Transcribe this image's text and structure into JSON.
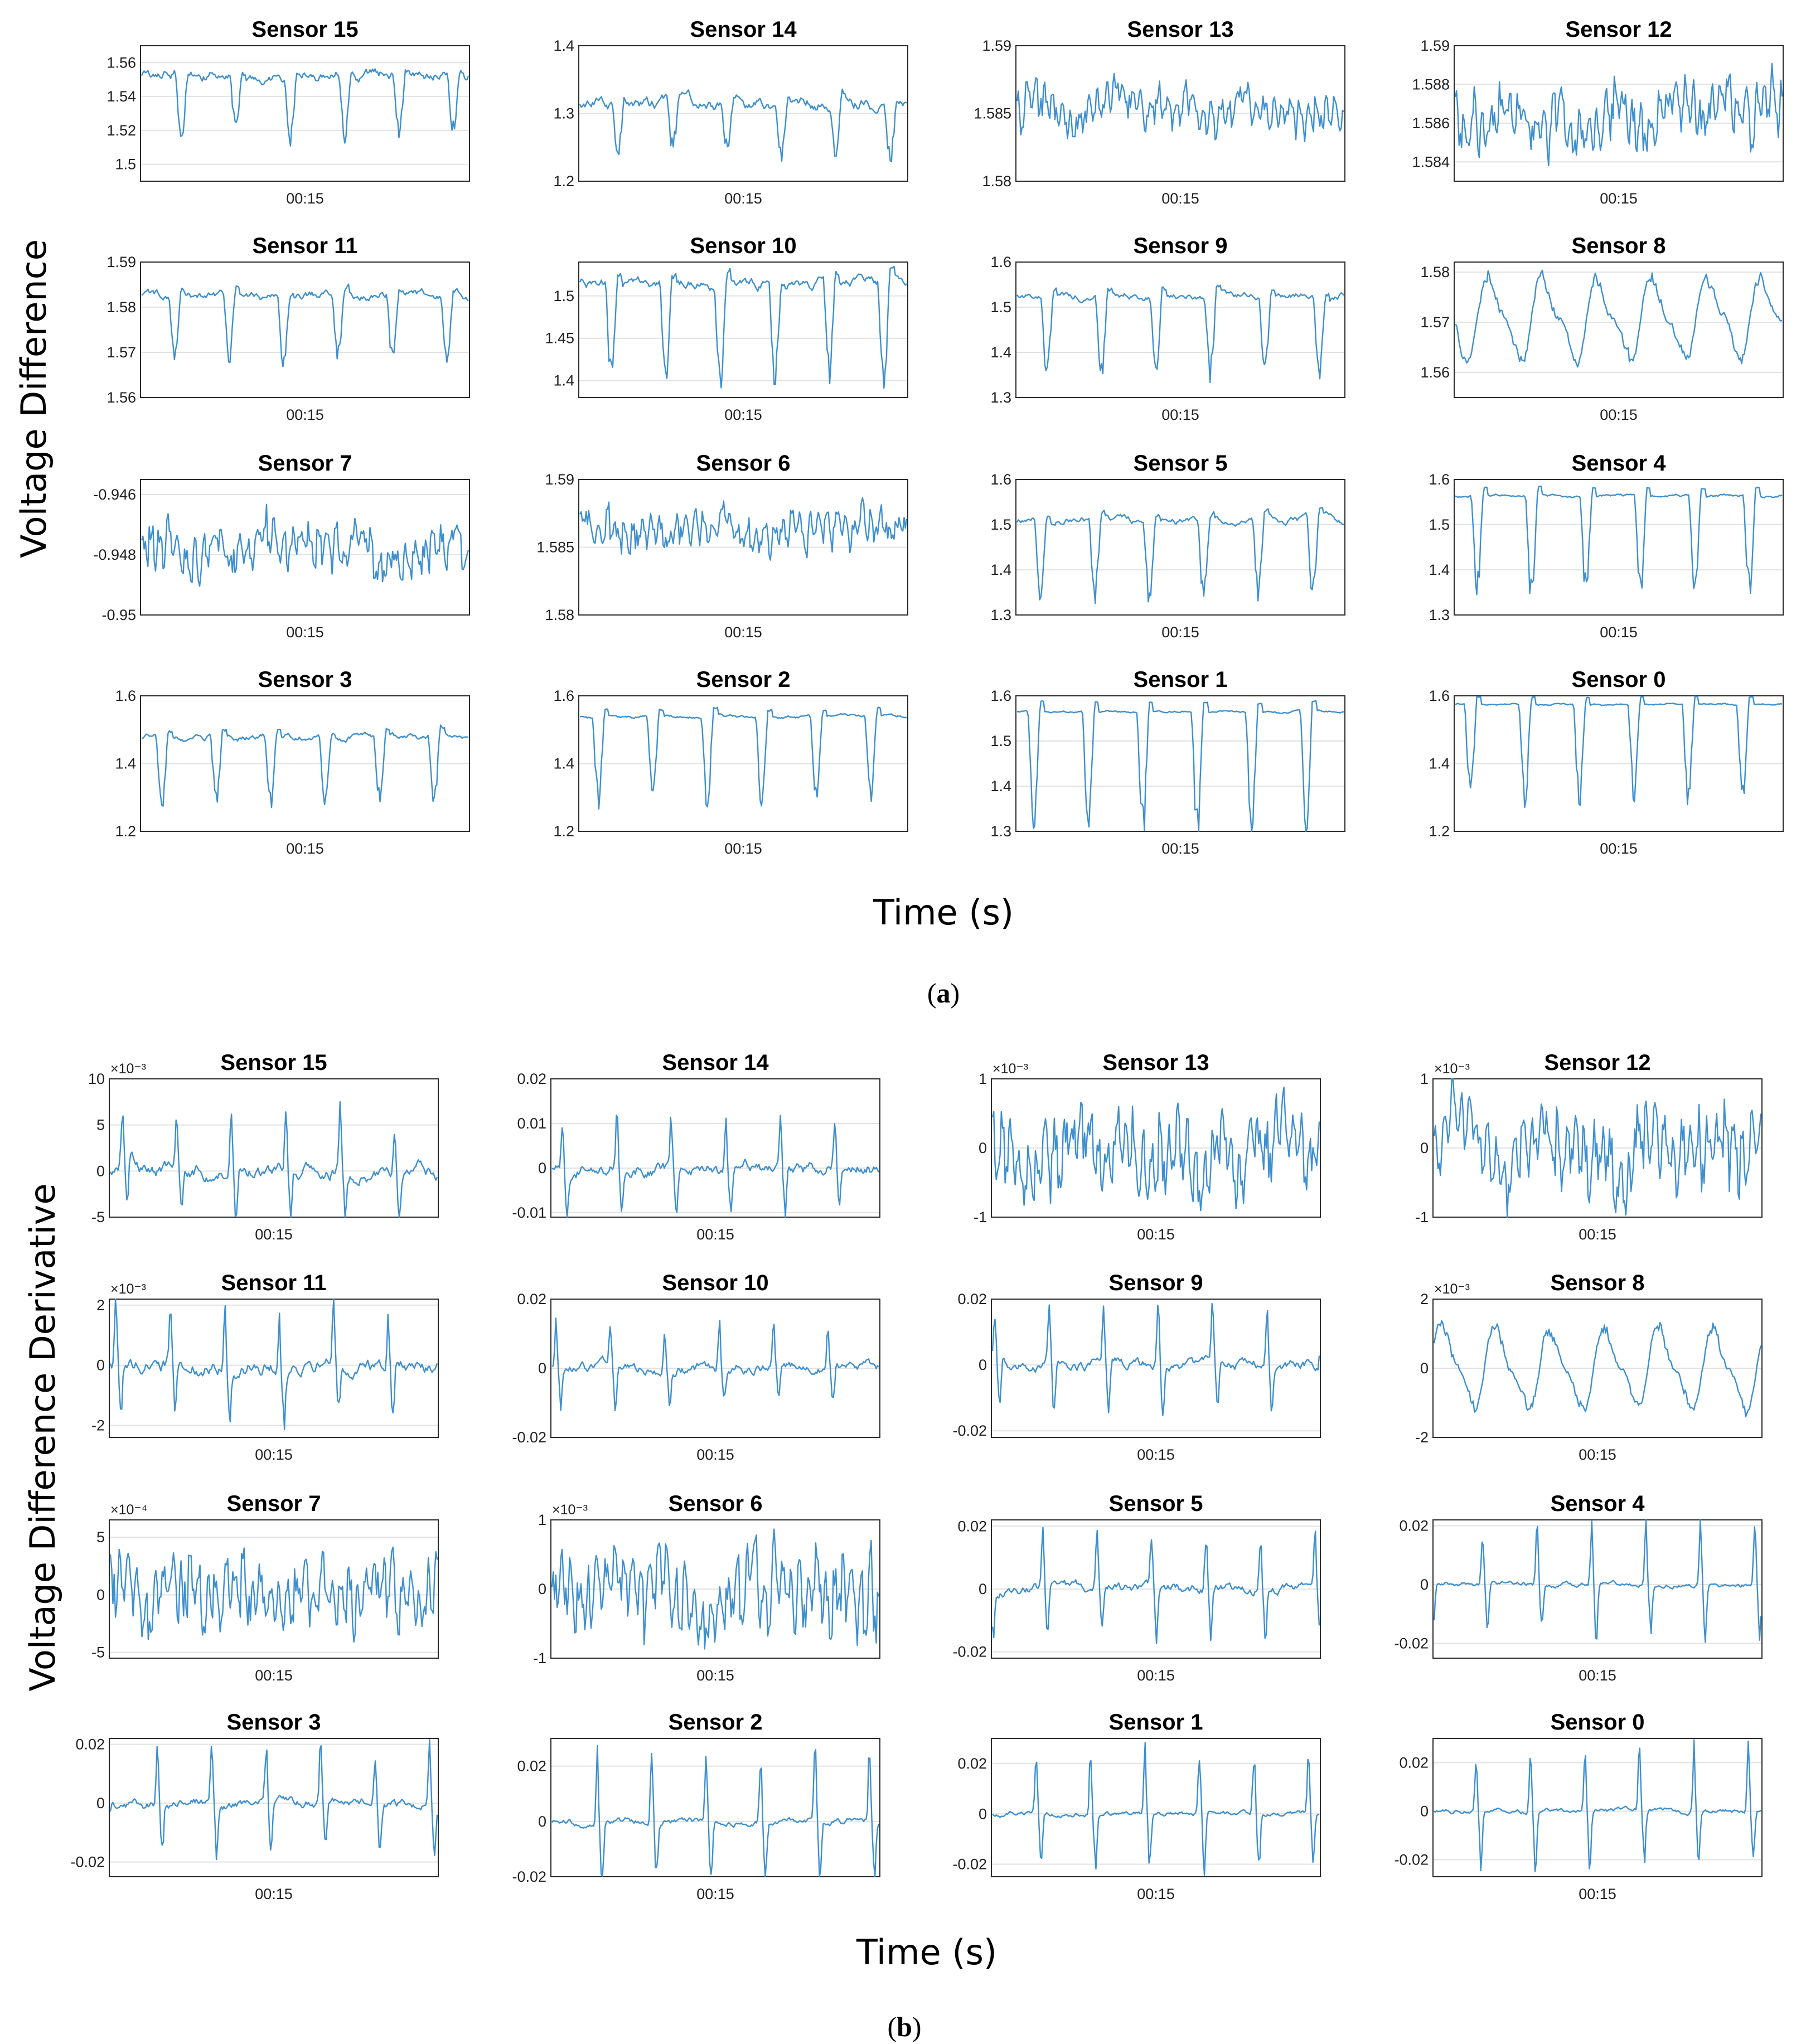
{
  "panels": [
    {
      "id": "a",
      "caption_label": "a",
      "ylabel": "Voltage Difference",
      "xlabel": "Time (s)"
    },
    {
      "id": "b",
      "caption_label": "b",
      "ylabel": "Voltage Difference Derivative",
      "xlabel": "Time (s)"
    }
  ],
  "chart_data": [
    {
      "panel": "a",
      "type": "line",
      "title": "Sensor 15",
      "xtick": "00:15",
      "ylim": [
        1.49,
        1.57
      ],
      "yticks": [
        1.5,
        1.52,
        1.54,
        1.56
      ],
      "yticklabels": [
        "1.5",
        "1.52",
        "1.54",
        "1.56"
      ],
      "multiplier": "",
      "signal": {
        "kind": "level",
        "base": 1.553,
        "amp": 0.035,
        "noise": 0.004
      }
    },
    {
      "panel": "a",
      "type": "line",
      "title": "Sensor 14",
      "xtick": "00:15",
      "ylim": [
        1.2,
        1.4
      ],
      "yticks": [
        1.2,
        1.3,
        1.4
      ],
      "yticklabels": [
        "1.2",
        "1.3",
        "1.4"
      ],
      "multiplier": "",
      "signal": {
        "kind": "level",
        "base": 1.315,
        "amp": 0.075,
        "noise": 0.012
      }
    },
    {
      "panel": "a",
      "type": "line",
      "title": "Sensor 13",
      "xtick": "00:15",
      "ylim": [
        1.58,
        1.59
      ],
      "yticks": [
        1.58,
        1.585,
        1.59
      ],
      "yticklabels": [
        "1.58",
        "1.585",
        "1.59"
      ],
      "multiplier": "",
      "signal": {
        "kind": "noise",
        "base": 1.5855,
        "amp": 0.0014,
        "noise": 0.0009
      }
    },
    {
      "panel": "a",
      "type": "line",
      "title": "Sensor 12",
      "xtick": "00:15",
      "ylim": [
        1.583,
        1.59
      ],
      "yticks": [
        1.584,
        1.586,
        1.588,
        1.59
      ],
      "yticklabels": [
        "1.584",
        "1.586",
        "1.588",
        "1.59"
      ],
      "multiplier": "",
      "signal": {
        "kind": "noise",
        "base": 1.5864,
        "amp": 0.0014,
        "noise": 0.0008
      }
    },
    {
      "panel": "a",
      "type": "line",
      "title": "Sensor 11",
      "xtick": "00:15",
      "ylim": [
        1.56,
        1.59
      ],
      "yticks": [
        1.56,
        1.57,
        1.58,
        1.59
      ],
      "yticklabels": [
        "1.56",
        "1.57",
        "1.58",
        "1.59"
      ],
      "multiplier": "",
      "signal": {
        "kind": "level",
        "base": 1.5825,
        "amp": 0.014,
        "noise": 0.0012
      }
    },
    {
      "panel": "a",
      "type": "line",
      "title": "Sensor 10",
      "xtick": "00:15",
      "ylim": [
        1.38,
        1.54
      ],
      "yticks": [
        1.4,
        1.45,
        1.5
      ],
      "yticklabels": [
        "1.4",
        "1.45",
        "1.5"
      ],
      "multiplier": "",
      "signal": {
        "kind": "level",
        "base": 1.515,
        "amp": 0.12,
        "noise": 0.008
      }
    },
    {
      "panel": "a",
      "type": "line",
      "title": "Sensor 9",
      "xtick": "00:15",
      "ylim": [
        1.3,
        1.6
      ],
      "yticks": [
        1.3,
        1.4,
        1.5,
        1.6
      ],
      "yticklabels": [
        "1.3",
        "1.4",
        "1.5",
        "1.6"
      ],
      "multiplier": "",
      "signal": {
        "kind": "level",
        "base": 1.525,
        "amp": 0.18,
        "noise": 0.01
      }
    },
    {
      "panel": "a",
      "type": "line",
      "title": "Sensor 8",
      "xtick": "00:15",
      "ylim": [
        1.555,
        1.582
      ],
      "yticks": [
        1.56,
        1.57,
        1.58
      ],
      "yticklabels": [
        "1.56",
        "1.57",
        "1.58"
      ],
      "multiplier": "",
      "signal": {
        "kind": "wave",
        "base": 1.571,
        "amp": 0.007,
        "noise": 0.0012
      }
    },
    {
      "panel": "a",
      "type": "line",
      "title": "Sensor 7",
      "xtick": "00:15",
      "ylim": [
        -0.95,
        -0.9455
      ],
      "yticks": [
        -0.95,
        -0.948,
        -0.946
      ],
      "yticklabels": [
        "-0.95",
        "-0.948",
        "-0.946"
      ],
      "multiplier": "",
      "signal": {
        "kind": "noise",
        "base": -0.9478,
        "amp": 0.0007,
        "noise": 0.0005
      }
    },
    {
      "panel": "a",
      "type": "line",
      "title": "Sensor 6",
      "xtick": "00:15",
      "ylim": [
        1.58,
        1.59
      ],
      "yticks": [
        1.58,
        1.585,
        1.59
      ],
      "yticklabels": [
        "1.58",
        "1.585",
        "1.59"
      ],
      "multiplier": "",
      "signal": {
        "kind": "noise",
        "base": 1.5863,
        "amp": 0.0013,
        "noise": 0.0008
      }
    },
    {
      "panel": "a",
      "type": "line",
      "title": "Sensor 5",
      "xtick": "00:15",
      "ylim": [
        1.3,
        1.6
      ],
      "yticks": [
        1.3,
        1.4,
        1.5,
        1.6
      ],
      "yticklabels": [
        "1.3",
        "1.4",
        "1.5",
        "1.6"
      ],
      "multiplier": "",
      "signal": {
        "kind": "level",
        "base": 1.51,
        "amp": 0.17,
        "noise": 0.01
      }
    },
    {
      "panel": "a",
      "type": "line",
      "title": "Sensor 4",
      "xtick": "00:15",
      "ylim": [
        1.3,
        1.6
      ],
      "yticks": [
        1.3,
        1.4,
        1.5,
        1.6
      ],
      "yticklabels": [
        "1.3",
        "1.4",
        "1.5",
        "1.6"
      ],
      "multiplier": "",
      "signal": {
        "kind": "level",
        "base": 1.565,
        "amp": 0.22,
        "noise": 0.004
      }
    },
    {
      "panel": "a",
      "type": "line",
      "title": "Sensor 3",
      "xtick": "00:15",
      "ylim": [
        1.2,
        1.6
      ],
      "yticks": [
        1.2,
        1.4,
        1.6
      ],
      "yticklabels": [
        "1.2",
        "1.4",
        "1.6"
      ],
      "multiplier": "",
      "signal": {
        "kind": "level",
        "base": 1.48,
        "amp": 0.2,
        "noise": 0.012
      }
    },
    {
      "panel": "a",
      "type": "line",
      "title": "Sensor 2",
      "xtick": "00:15",
      "ylim": [
        1.2,
        1.6
      ],
      "yticks": [
        1.2,
        1.4,
        1.6
      ],
      "yticklabels": [
        "1.2",
        "1.4",
        "1.6"
      ],
      "multiplier": "",
      "signal": {
        "kind": "level",
        "base": 1.54,
        "amp": 0.25,
        "noise": 0.006
      }
    },
    {
      "panel": "a",
      "type": "line",
      "title": "Sensor 1",
      "xtick": "00:15",
      "ylim": [
        1.3,
        1.6
      ],
      "yticks": [
        1.3,
        1.4,
        1.5,
        1.6
      ],
      "yticklabels": [
        "1.3",
        "1.4",
        "1.5",
        "1.6"
      ],
      "multiplier": "",
      "signal": {
        "kind": "level",
        "base": 1.565,
        "amp": 0.26,
        "noise": 0.003
      }
    },
    {
      "panel": "a",
      "type": "line",
      "title": "Sensor 0",
      "xtick": "00:15",
      "ylim": [
        1.2,
        1.6
      ],
      "yticks": [
        1.2,
        1.4,
        1.6
      ],
      "yticklabels": [
        "1.2",
        "1.4",
        "1.6"
      ],
      "multiplier": "",
      "signal": {
        "kind": "level",
        "base": 1.575,
        "amp": 0.28,
        "noise": 0.003
      }
    },
    {
      "panel": "b",
      "type": "line",
      "title": "Sensor 15",
      "xtick": "00:15",
      "ylim": [
        -5,
        10
      ],
      "yticks": [
        -5,
        0,
        5,
        10
      ],
      "yticklabels": [
        "-5",
        "0",
        "5",
        "10"
      ],
      "multiplier": "×10⁻³",
      "signal": {
        "kind": "deriv",
        "base": 0,
        "amp": 6,
        "noise": 1
      }
    },
    {
      "panel": "b",
      "type": "line",
      "title": "Sensor 14",
      "xtick": "00:15",
      "ylim": [
        -0.011,
        0.02
      ],
      "yticks": [
        -0.01,
        0,
        0.01,
        0.02
      ],
      "yticklabels": [
        "-0.01",
        "0",
        "0.01",
        "0.02"
      ],
      "multiplier": "",
      "signal": {
        "kind": "deriv",
        "base": 0,
        "amp": 0.012,
        "noise": 0.002
      }
    },
    {
      "panel": "b",
      "type": "line",
      "title": "Sensor 13",
      "xtick": "00:15",
      "ylim": [
        -1,
        1
      ],
      "yticks": [
        -1,
        0,
        1
      ],
      "yticklabels": [
        "-1",
        "0",
        "1"
      ],
      "multiplier": "×10⁻³",
      "signal": {
        "kind": "noise",
        "base": 0,
        "amp": 0.55,
        "noise": 0.3
      }
    },
    {
      "panel": "b",
      "type": "line",
      "title": "Sensor 12",
      "xtick": "00:15",
      "ylim": [
        -1,
        1
      ],
      "yticks": [
        -1,
        0,
        1
      ],
      "yticklabels": [
        "-1",
        "0",
        "1"
      ],
      "multiplier": "×10⁻³",
      "signal": {
        "kind": "noise",
        "base": 0,
        "amp": 0.55,
        "noise": 0.3
      }
    },
    {
      "panel": "b",
      "type": "line",
      "title": "Sensor 11",
      "xtick": "00:15",
      "ylim": [
        -2.4,
        2.2
      ],
      "yticks": [
        -2,
        0,
        2
      ],
      "yticklabels": [
        "-2",
        "0",
        "2"
      ],
      "multiplier": "×10⁻³",
      "signal": {
        "kind": "deriv",
        "base": 0,
        "amp": 2,
        "noise": 0.3
      }
    },
    {
      "panel": "b",
      "type": "line",
      "title": "Sensor 10",
      "xtick": "00:15",
      "ylim": [
        -0.02,
        0.02
      ],
      "yticks": [
        -0.02,
        0,
        0.02
      ],
      "yticklabels": [
        "-0.02",
        "0",
        "0.02"
      ],
      "multiplier": "",
      "signal": {
        "kind": "deriv",
        "base": 0,
        "amp": 0.013,
        "noise": 0.002
      }
    },
    {
      "panel": "b",
      "type": "line",
      "title": "Sensor 9",
      "xtick": "00:15",
      "ylim": [
        -0.022,
        0.02
      ],
      "yticks": [
        -0.02,
        0,
        0.02
      ],
      "yticklabels": [
        "-0.02",
        "0",
        "0.02"
      ],
      "multiplier": "",
      "signal": {
        "kind": "deriv",
        "base": 0,
        "amp": 0.018,
        "noise": 0.002
      }
    },
    {
      "panel": "b",
      "type": "line",
      "title": "Sensor 8",
      "xtick": "00:15",
      "ylim": [
        -2,
        2
      ],
      "yticks": [
        -2,
        0,
        2
      ],
      "yticklabels": [
        "-2",
        "0",
        "2"
      ],
      "multiplier": "×10⁻³",
      "signal": {
        "kind": "wave",
        "base": 0,
        "amp": 1,
        "noise": 0.15
      }
    },
    {
      "panel": "b",
      "type": "line",
      "title": "Sensor 7",
      "xtick": "00:15",
      "ylim": [
        -5.5,
        6.5
      ],
      "yticks": [
        -5,
        0,
        5
      ],
      "yticklabels": [
        "-5",
        "0",
        "5"
      ],
      "multiplier": "×10⁻⁴",
      "signal": {
        "kind": "noise",
        "base": 0,
        "amp": 3,
        "noise": 1.6
      }
    },
    {
      "panel": "b",
      "type": "line",
      "title": "Sensor 6",
      "xtick": "00:15",
      "ylim": [
        -1,
        1
      ],
      "yticks": [
        -1,
        0,
        1
      ],
      "yticklabels": [
        "-1",
        "0",
        "1"
      ],
      "multiplier": "×10⁻³",
      "signal": {
        "kind": "noise",
        "base": 0,
        "amp": 0.55,
        "noise": 0.3
      }
    },
    {
      "panel": "b",
      "type": "line",
      "title": "Sensor 5",
      "xtick": "00:15",
      "ylim": [
        -0.022,
        0.022
      ],
      "yticks": [
        -0.02,
        0,
        0.02
      ],
      "yticklabels": [
        "-0.02",
        "0",
        "0.02"
      ],
      "multiplier": "",
      "signal": {
        "kind": "deriv",
        "base": 0,
        "amp": 0.018,
        "noise": 0.002
      }
    },
    {
      "panel": "b",
      "type": "line",
      "title": "Sensor 4",
      "xtick": "00:15",
      "ylim": [
        -0.025,
        0.022
      ],
      "yticks": [
        -0.02,
        0,
        0.02
      ],
      "yticklabels": [
        "-0.02",
        "0",
        "0.02"
      ],
      "multiplier": "",
      "signal": {
        "kind": "deriv",
        "base": 0,
        "amp": 0.021,
        "noise": 0.001
      }
    },
    {
      "panel": "b",
      "type": "line",
      "title": "Sensor 3",
      "xtick": "00:15",
      "ylim": [
        -0.025,
        0.022
      ],
      "yticks": [
        -0.02,
        0,
        0.02
      ],
      "yticklabels": [
        "-0.02",
        "0",
        "0.02"
      ],
      "multiplier": "",
      "signal": {
        "kind": "deriv",
        "base": 0,
        "amp": 0.021,
        "noise": 0.002
      }
    },
    {
      "panel": "b",
      "type": "line",
      "title": "Sensor 2",
      "xtick": "00:15",
      "ylim": [
        -0.02,
        0.03
      ],
      "yticks": [
        -0.02,
        0,
        0.02
      ],
      "yticklabels": [
        "-0.02",
        "0",
        "0.02"
      ],
      "multiplier": "",
      "signal": {
        "kind": "deriv",
        "base": 0,
        "amp": 0.025,
        "noise": 0.0015
      }
    },
    {
      "panel": "b",
      "type": "line",
      "title": "Sensor 1",
      "xtick": "00:15",
      "ylim": [
        -0.025,
        0.03
      ],
      "yticks": [
        -0.02,
        0,
        0.02
      ],
      "yticklabels": [
        "-0.02",
        "0",
        "0.02"
      ],
      "multiplier": "",
      "signal": {
        "kind": "deriv",
        "base": 0,
        "amp": 0.025,
        "noise": 0.0012
      }
    },
    {
      "panel": "b",
      "type": "line",
      "title": "Sensor 0",
      "xtick": "00:15",
      "ylim": [
        -0.027,
        0.03
      ],
      "yticks": [
        -0.02,
        0,
        0.02
      ],
      "yticklabels": [
        "-0.02",
        "0",
        "0.02"
      ],
      "multiplier": "",
      "signal": {
        "kind": "deriv",
        "base": 0,
        "amp": 0.026,
        "noise": 0.0012
      }
    }
  ]
}
